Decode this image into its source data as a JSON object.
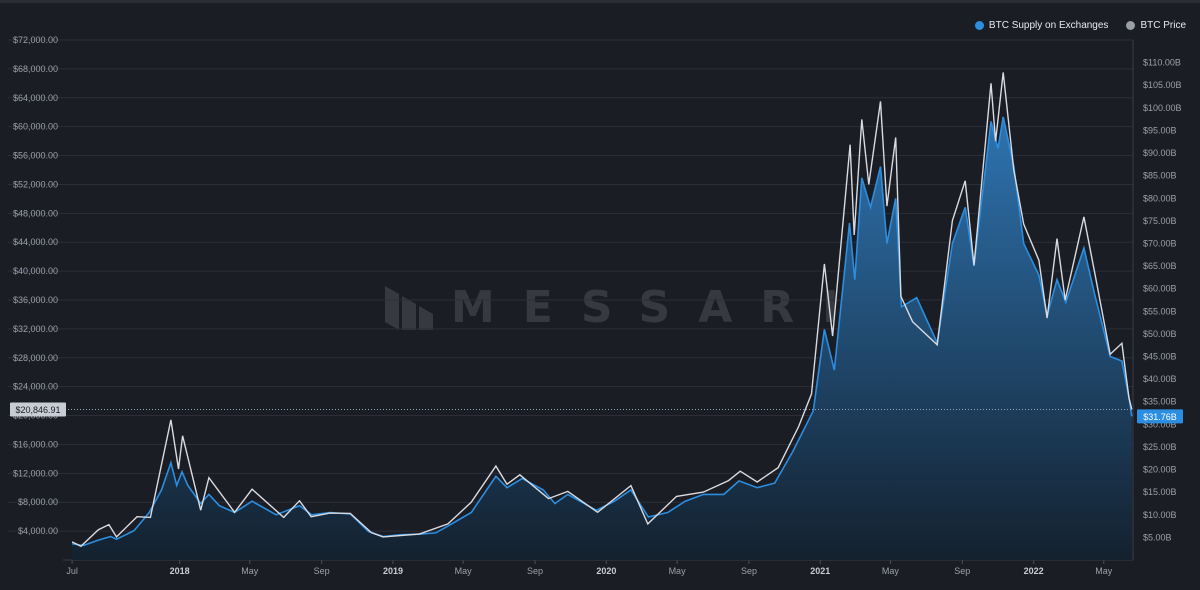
{
  "legend": {
    "supply_label": "BTC Supply on Exchanges",
    "price_label": "BTC Price"
  },
  "watermark": {
    "text": "MESSARI"
  },
  "chart_data": {
    "type": "area",
    "grid": true,
    "legend_position": "top-right",
    "colors": {
      "background": "#1b1d24",
      "grid": "#2b2e38",
      "supply_line": "#2b8ee0",
      "supply_fill_top": "#2f78b8",
      "supply_fill_bottom": "#13212f",
      "price_line": "#d9dbe1",
      "axis_text": "#9ca0aa",
      "current_badge": "#2b8ee0",
      "price_badge": "#c8ccd4"
    },
    "x_ticks": [
      {
        "label": "Jul",
        "date": "2017-07-01"
      },
      {
        "label": "2018",
        "date": "2018-01-01"
      },
      {
        "label": "May",
        "date": "2018-05-01"
      },
      {
        "label": "Sep",
        "date": "2018-09-01"
      },
      {
        "label": "2019",
        "date": "2019-01-01"
      },
      {
        "label": "May",
        "date": "2019-05-01"
      },
      {
        "label": "Sep",
        "date": "2019-09-01"
      },
      {
        "label": "2020",
        "date": "2020-01-01"
      },
      {
        "label": "May",
        "date": "2020-05-01"
      },
      {
        "label": "Sep",
        "date": "2020-09-01"
      },
      {
        "label": "2021",
        "date": "2021-01-01"
      },
      {
        "label": "May",
        "date": "2021-05-01"
      },
      {
        "label": "Sep",
        "date": "2021-09-01"
      },
      {
        "label": "2022",
        "date": "2022-01-01"
      },
      {
        "label": "May",
        "date": "2022-05-01"
      }
    ],
    "x_range": [
      "2017-06-24",
      "2022-06-20"
    ],
    "y_left": {
      "label": "",
      "range": [
        0,
        72000
      ],
      "ticks": [
        4000,
        8000,
        12000,
        16000,
        20000,
        24000,
        28000,
        32000,
        36000,
        40000,
        44000,
        48000,
        52000,
        56000,
        60000,
        64000,
        68000,
        72000
      ],
      "tick_labels": [
        "$4,000.00",
        "$8,000.00",
        "$12,000.00",
        "$16,000.00",
        "$20,000.00",
        "$24,000.00",
        "$28,000.00",
        "$32,000.00",
        "$36,000.00",
        "$40,000.00",
        "$44,000.00",
        "$48,000.00",
        "$52,000.00",
        "$56,000.00",
        "$60,000.00",
        "$64,000.00",
        "$68,000.00",
        "$72,000.00"
      ]
    },
    "y_right": {
      "label": "",
      "range": [
        0,
        115
      ],
      "unit": "B",
      "ticks": [
        5,
        10,
        15,
        20,
        25,
        30,
        35,
        40,
        45,
        50,
        55,
        60,
        65,
        70,
        75,
        80,
        85,
        90,
        95,
        100,
        105,
        110
      ],
      "tick_labels": [
        "$5.00B",
        "$10.00B",
        "$15.00B",
        "$20.00B",
        "$25.00B",
        "$30.00B",
        "$35.00B",
        "$40.00B",
        "$45.00B",
        "$50.00B",
        "$55.00B",
        "$60.00B",
        "$65.00B",
        "$70.00B",
        "$75.00B",
        "$80.00B",
        "$85.00B",
        "$90.00B",
        "$95.00B",
        "$100.00B",
        "$105.00B",
        "$110.00B"
      ]
    },
    "current_price_label": "$20,846.91",
    "current_price_value": 20846.91,
    "current_supply_label": "$31.76B",
    "current_supply_value": 31.76,
    "series": [
      {
        "name": "BTC Supply on Exchanges",
        "axis": "right",
        "points": [
          [
            "2017-07-01",
            3.6
          ],
          [
            "2017-07-20",
            3.2
          ],
          [
            "2017-08-15",
            4.4
          ],
          [
            "2017-09-05",
            5.2
          ],
          [
            "2017-09-15",
            4.6
          ],
          [
            "2017-10-15",
            6.5
          ],
          [
            "2017-11-10",
            10.5
          ],
          [
            "2017-12-01",
            15.5
          ],
          [
            "2017-12-17",
            21.5
          ],
          [
            "2017-12-27",
            16.5
          ],
          [
            "2018-01-05",
            19.5
          ],
          [
            "2018-01-15",
            16.5
          ],
          [
            "2018-02-06",
            12.5
          ],
          [
            "2018-02-20",
            14.5
          ],
          [
            "2018-03-10",
            12.0
          ],
          [
            "2018-04-05",
            10.5
          ],
          [
            "2018-05-05",
            13.0
          ],
          [
            "2018-06-15",
            10.0
          ],
          [
            "2018-07-25",
            12.0
          ],
          [
            "2018-08-15",
            10.0
          ],
          [
            "2018-09-15",
            10.5
          ],
          [
            "2018-10-20",
            10.2
          ],
          [
            "2018-11-20",
            6.3
          ],
          [
            "2018-12-15",
            5.2
          ],
          [
            "2019-01-15",
            5.6
          ],
          [
            "2019-02-15",
            5.7
          ],
          [
            "2019-03-15",
            6.0
          ],
          [
            "2019-04-05",
            7.5
          ],
          [
            "2019-05-15",
            10.5
          ],
          [
            "2019-06-26",
            18.5
          ],
          [
            "2019-07-15",
            16.0
          ],
          [
            "2019-08-10",
            18.0
          ],
          [
            "2019-09-15",
            15.5
          ],
          [
            "2019-10-05",
            12.5
          ],
          [
            "2019-10-27",
            14.5
          ],
          [
            "2019-12-15",
            11.0
          ],
          [
            "2020-01-15",
            13.0
          ],
          [
            "2020-02-12",
            15.5
          ],
          [
            "2020-03-13",
            9.5
          ],
          [
            "2020-04-15",
            10.5
          ],
          [
            "2020-05-15",
            13.0
          ],
          [
            "2020-06-15",
            14.5
          ],
          [
            "2020-07-20",
            14.5
          ],
          [
            "2020-08-15",
            17.5
          ],
          [
            "2020-09-15",
            16.0
          ],
          [
            "2020-10-15",
            17.0
          ],
          [
            "2020-11-15",
            24.0
          ],
          [
            "2020-12-20",
            33.0
          ],
          [
            "2021-01-08",
            51.0
          ],
          [
            "2021-01-25",
            42.0
          ],
          [
            "2021-02-20",
            74.5
          ],
          [
            "2021-03-01",
            62.0
          ],
          [
            "2021-03-13",
            84.5
          ],
          [
            "2021-03-28",
            78.0
          ],
          [
            "2021-04-14",
            87.0
          ],
          [
            "2021-04-25",
            70.0
          ],
          [
            "2021-05-10",
            80.0
          ],
          [
            "2021-05-20",
            56.0
          ],
          [
            "2021-06-15",
            58.0
          ],
          [
            "2021-07-20",
            48.0
          ],
          [
            "2021-08-15",
            70.0
          ],
          [
            "2021-09-06",
            78.0
          ],
          [
            "2021-09-21",
            65.0
          ],
          [
            "2021-10-20",
            97.0
          ],
          [
            "2021-11-01",
            91.0
          ],
          [
            "2021-11-10",
            98.0
          ],
          [
            "2021-11-28",
            87.0
          ],
          [
            "2021-12-15",
            70.0
          ],
          [
            "2022-01-10",
            63.0
          ],
          [
            "2022-01-24",
            54.0
          ],
          [
            "2022-02-10",
            62.0
          ],
          [
            "2022-02-25",
            57.0
          ],
          [
            "2022-03-28",
            69.0
          ],
          [
            "2022-04-15",
            59.0
          ],
          [
            "2022-05-12",
            45.0
          ],
          [
            "2022-06-01",
            44.0
          ],
          [
            "2022-06-13",
            36.0
          ],
          [
            "2022-06-18",
            31.76
          ]
        ]
      },
      {
        "name": "BTC Price",
        "axis": "left",
        "points": [
          [
            "2017-07-01",
            2500
          ],
          [
            "2017-07-16",
            1900
          ],
          [
            "2017-08-15",
            4200
          ],
          [
            "2017-09-02",
            4900
          ],
          [
            "2017-09-15",
            3200
          ],
          [
            "2017-10-20",
            6000
          ],
          [
            "2017-11-12",
            5900
          ],
          [
            "2017-12-17",
            19400
          ],
          [
            "2017-12-30",
            12600
          ],
          [
            "2018-01-06",
            17200
          ],
          [
            "2018-02-06",
            6900
          ],
          [
            "2018-02-20",
            11400
          ],
          [
            "2018-04-05",
            6600
          ],
          [
            "2018-05-05",
            9800
          ],
          [
            "2018-06-28",
            5900
          ],
          [
            "2018-07-25",
            8200
          ],
          [
            "2018-08-14",
            6000
          ],
          [
            "2018-09-15",
            6500
          ],
          [
            "2018-10-20",
            6450
          ],
          [
            "2018-11-25",
            3800
          ],
          [
            "2018-12-15",
            3200
          ],
          [
            "2019-02-15",
            3600
          ],
          [
            "2019-04-05",
            5000
          ],
          [
            "2019-05-15",
            8000
          ],
          [
            "2019-06-26",
            13000
          ],
          [
            "2019-07-15",
            10500
          ],
          [
            "2019-08-06",
            11800
          ],
          [
            "2019-09-24",
            8500
          ],
          [
            "2019-10-27",
            9500
          ],
          [
            "2019-12-17",
            6600
          ],
          [
            "2020-02-12",
            10300
          ],
          [
            "2020-03-12",
            5000
          ],
          [
            "2020-04-30",
            8800
          ],
          [
            "2020-06-15",
            9400
          ],
          [
            "2020-07-28",
            11000
          ],
          [
            "2020-08-17",
            12300
          ],
          [
            "2020-09-15",
            10800
          ],
          [
            "2020-10-21",
            12800
          ],
          [
            "2020-11-25",
            18500
          ],
          [
            "2020-12-17",
            23000
          ],
          [
            "2021-01-08",
            41000
          ],
          [
            "2021-01-22",
            31000
          ],
          [
            "2021-02-21",
            57500
          ],
          [
            "2021-02-28",
            45000
          ],
          [
            "2021-03-13",
            61000
          ],
          [
            "2021-03-25",
            52000
          ],
          [
            "2021-04-14",
            63500
          ],
          [
            "2021-04-25",
            49000
          ],
          [
            "2021-05-10",
            58500
          ],
          [
            "2021-05-19",
            36500
          ],
          [
            "2021-06-08",
            33000
          ],
          [
            "2021-07-20",
            29800
          ],
          [
            "2021-08-15",
            47000
          ],
          [
            "2021-09-06",
            52500
          ],
          [
            "2021-09-21",
            40800
          ],
          [
            "2021-10-20",
            66000
          ],
          [
            "2021-10-28",
            58000
          ],
          [
            "2021-11-10",
            67500
          ],
          [
            "2021-11-28",
            54000
          ],
          [
            "2021-12-15",
            46500
          ],
          [
            "2022-01-10",
            41500
          ],
          [
            "2022-01-24",
            33500
          ],
          [
            "2022-02-10",
            44500
          ],
          [
            "2022-02-24",
            36000
          ],
          [
            "2022-03-28",
            47500
          ],
          [
            "2022-04-15",
            40000
          ],
          [
            "2022-05-12",
            28500
          ],
          [
            "2022-06-01",
            30000
          ],
          [
            "2022-06-13",
            22500
          ],
          [
            "2022-06-18",
            20846.91
          ]
        ]
      }
    ]
  }
}
